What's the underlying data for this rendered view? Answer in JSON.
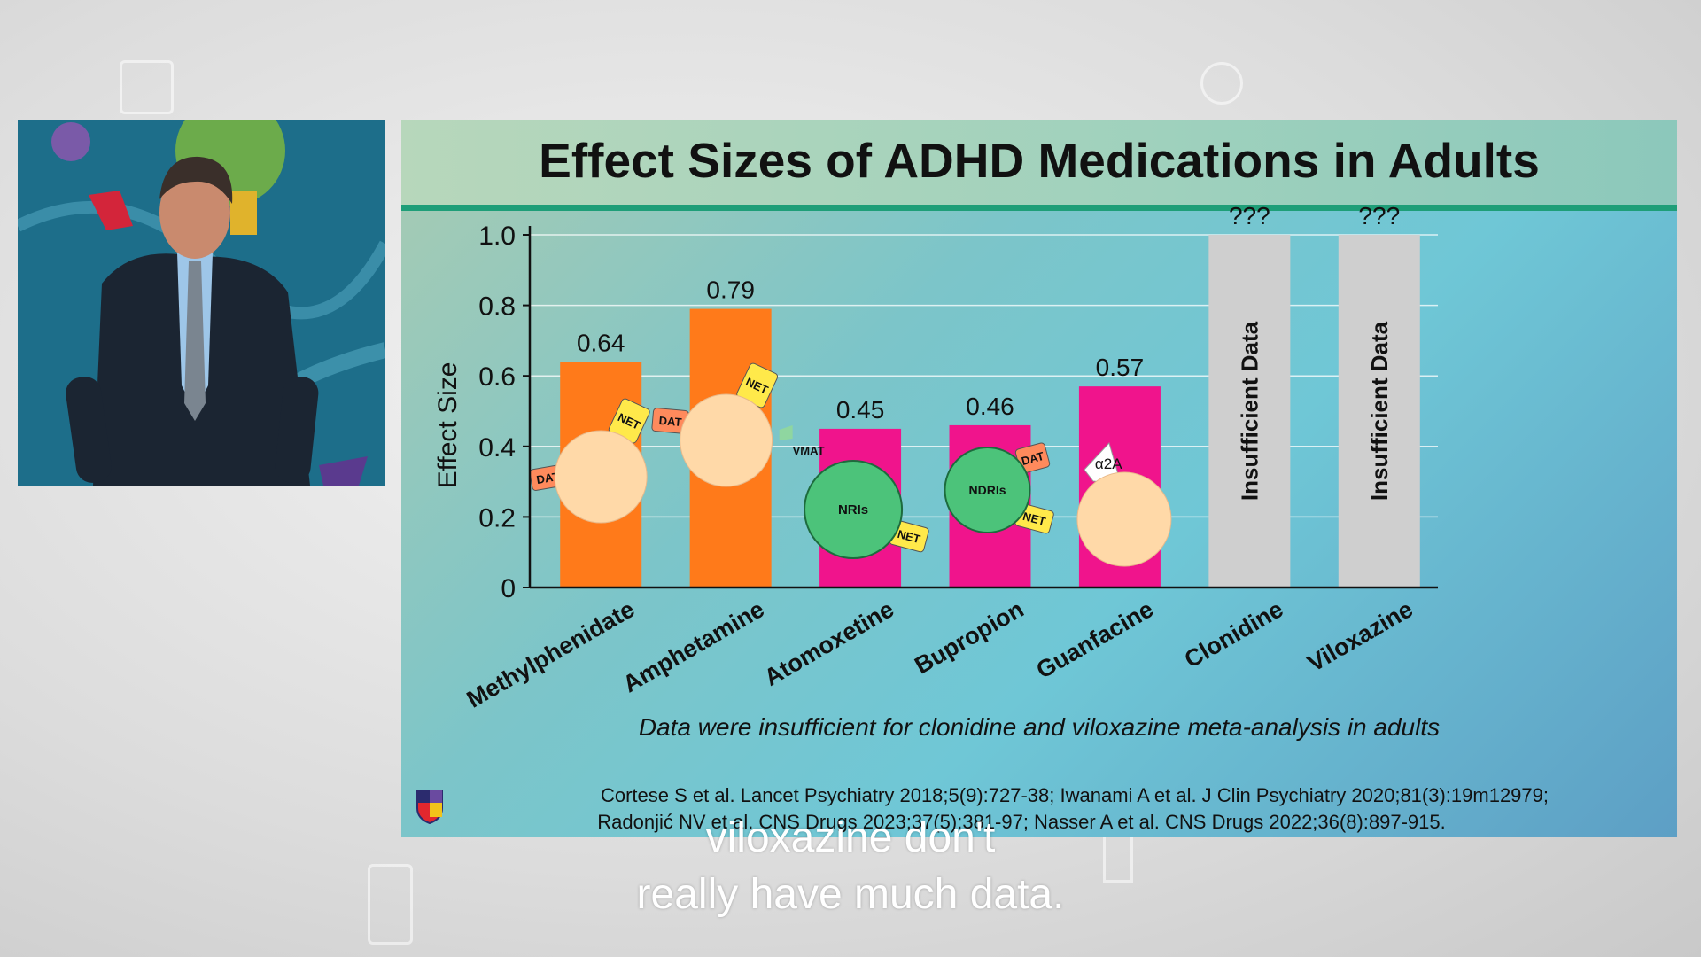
{
  "slide": {
    "title": "Effect Sizes of ADHD Medications in Adults",
    "footnote": "Data were insufficient for clonidine and viloxazine meta-analysis in adults",
    "references": [
      "Cortese S et al. Lancet Psychiatry 2018;5(9):727-38; Iwanami A et al. J Clin Psychiatry 2020;81(3):19m12979;",
      "Radonjić NV et al. CNS Drugs 2023;37(5):381-97; Nasser A et al. CNS Drugs 2022;36(8):897-915."
    ]
  },
  "captions": {
    "line1": "viloxazine don't",
    "line2": "really have much data."
  },
  "chart_data": {
    "type": "bar",
    "ylabel": "Effect Size",
    "ylim": [
      0,
      1.0
    ],
    "yticks": [
      "0",
      "0.2",
      "0.4",
      "0.6",
      "0.8",
      "1.0"
    ],
    "categories": [
      "Methylphenidate",
      "Amphetamine",
      "Atomoxetine",
      "Bupropion",
      "Guanfacine",
      "Clonidine",
      "Viloxazine"
    ],
    "values": [
      0.64,
      0.79,
      0.45,
      0.46,
      0.57,
      null,
      null
    ],
    "value_labels": [
      "0.64",
      "0.79",
      "0.45",
      "0.46",
      "0.57",
      "???",
      "???"
    ],
    "bar_colors": [
      "#ff7a1a",
      "#ff7a1a",
      "#f0148c",
      "#f0148c",
      "#f0148c",
      "#cfcfcf",
      "#cfcfcf"
    ],
    "insufficient_label": "Insufficient Data",
    "mechanism_labels": {
      "methylphenidate": [
        "DAT",
        "NET"
      ],
      "amphetamine": [
        "DAT",
        "NET",
        "VMAT"
      ],
      "atomoxetine": [
        "NRIs",
        "NET"
      ],
      "bupropion": [
        "NDRIs",
        "DAT",
        "NET"
      ],
      "guanfacine": [
        "α2A"
      ]
    }
  },
  "colors": {
    "stimulant": "#ff7a1a",
    "nonstimulant": "#f0148c",
    "insufficient": "#cfcfcf",
    "receptor_circle": "#ffd9a8",
    "drug_circle": "#4cc37a",
    "accent_rule": "#1e9e78"
  }
}
